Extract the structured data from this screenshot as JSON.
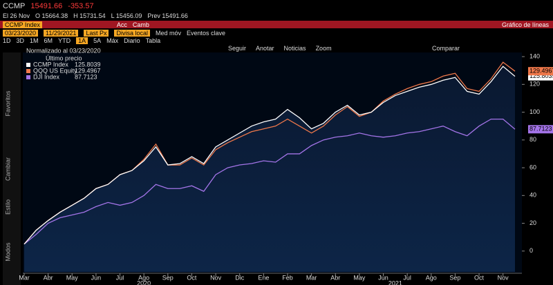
{
  "ui": {
    "ticker": "CCMP",
    "price": "15491.66",
    "change": "-353.57",
    "quote": [
      "El 26 Nov",
      "O 15664.38",
      "H 15731.54",
      "L 15456.09",
      "Prev 15491.66"
    ],
    "security": "CCMP Index",
    "actions": "Acc",
    "change_menu": "Camb",
    "chart_kind": "Gráfico de líneas",
    "start_date": "03/23/2020",
    "end_date": "11/29/2021",
    "field": "Last Px",
    "currency": "Divisa local",
    "moving_avg": "Med móv",
    "events": "Eventos clave",
    "periods": [
      "1D",
      "3D",
      "1M",
      "6M",
      "YTD",
      "1A",
      "5A",
      "Máx",
      "Diario"
    ],
    "table": "Tabla",
    "tools": [
      "Seguir",
      "Anotar",
      "Noticias",
      "Zoom"
    ],
    "compare": "Comparar",
    "side": [
      "Favoritos",
      "Cambiar",
      "Estilo",
      "Modos"
    ],
    "legend_title": "Normalizado al 03/23/2020",
    "legend_sub": "Último precio"
  },
  "chart_data": {
    "type": "line",
    "categories": [
      "Mar",
      null,
      "Abr",
      null,
      "May",
      null,
      "Jun",
      null,
      "Jul",
      null,
      "Ago",
      null,
      "Sep",
      null,
      "Oct",
      null,
      "Nov",
      null,
      "Dic",
      null,
      "Ene",
      null,
      "Feb",
      null,
      "Mar",
      null,
      "Abr",
      null,
      "May",
      null,
      "Jun",
      null,
      "Jul",
      null,
      "Ago",
      null,
      "Sep",
      null,
      "Oct",
      null,
      "Nov",
      null
    ],
    "x_groups": [
      {
        "label": "2020",
        "index": 10
      },
      {
        "label": "2021",
        "index": 31
      }
    ],
    "series": [
      {
        "name": "CCMP Index",
        "color": "#ffffff",
        "values": [
          5,
          15,
          22,
          28,
          33,
          38,
          45,
          48,
          55,
          58,
          65,
          75,
          62,
          63,
          68,
          63,
          75,
          80,
          85,
          90,
          93,
          95,
          102,
          96,
          88,
          92,
          100,
          105,
          98,
          100,
          107,
          112,
          115,
          118,
          120,
          123,
          125,
          115,
          113,
          122,
          133,
          125.8039
        ]
      },
      {
        "name": "QQQ US Equity",
        "color": "#f0784a",
        "values": [
          5,
          15,
          22,
          28,
          33,
          38,
          45,
          48,
          55,
          58,
          66,
          77,
          62,
          62,
          67,
          62,
          73,
          78,
          82,
          86,
          88,
          90,
          95,
          90,
          85,
          90,
          98,
          104,
          97,
          100,
          108,
          113,
          117,
          120,
          122,
          126,
          128,
          117,
          115,
          124,
          136,
          129.4967
        ]
      },
      {
        "name": "DJI Index",
        "color": "#a474e8",
        "values": [
          5,
          12,
          20,
          24,
          26,
          28,
          32,
          35,
          33,
          35,
          40,
          48,
          45,
          45,
          47,
          43,
          55,
          60,
          62,
          63,
          65,
          64,
          70,
          70,
          76,
          80,
          82,
          83,
          85,
          83,
          82,
          83,
          85,
          86,
          88,
          90,
          86,
          83,
          90,
          95,
          95,
          87.7123
        ]
      }
    ],
    "ylim": [
      -15,
      145
    ],
    "yticks": [
      0,
      20,
      40,
      60,
      80,
      100,
      120,
      140
    ]
  }
}
